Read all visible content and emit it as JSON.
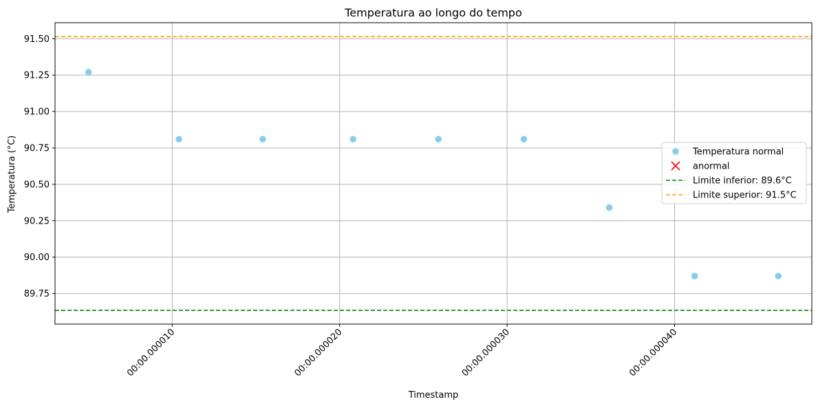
{
  "chart_data": {
    "type": "scatter",
    "title": "Temperatura ao longo do tempo",
    "xlabel": "Timestamp",
    "ylabel": "Temperatura (°C)",
    "x_unit": "microseconds",
    "xlim": [
      3,
      48.2
    ],
    "ylim": [
      89.54,
      91.61
    ],
    "x_ticks": [
      {
        "value": 10,
        "label": "00:00.000010"
      },
      {
        "value": 20,
        "label": "00:00.000020"
      },
      {
        "value": 30,
        "label": "00:00.000030"
      },
      {
        "value": 40,
        "label": "00:00.000040"
      }
    ],
    "y_ticks": [
      {
        "value": 89.75,
        "label": "89.75"
      },
      {
        "value": 90.0,
        "label": "90.00"
      },
      {
        "value": 90.25,
        "label": "90.25"
      },
      {
        "value": 90.5,
        "label": "90.50"
      },
      {
        "value": 90.75,
        "label": "90.75"
      },
      {
        "value": 91.0,
        "label": "91.00"
      },
      {
        "value": 91.25,
        "label": "91.25"
      },
      {
        "value": 91.5,
        "label": "91.50"
      }
    ],
    "grid": true,
    "legend_position": "center-right",
    "series": [
      {
        "name": "Temperatura normal",
        "kind": "scatter",
        "marker": "circle",
        "color": "#87ceeb",
        "x": [
          5.0,
          10.4,
          15.4,
          20.8,
          25.9,
          31.0,
          36.1,
          41.2,
          46.2
        ],
        "y": [
          91.27,
          90.81,
          90.81,
          90.81,
          90.81,
          90.81,
          90.34,
          89.87,
          89.87
        ]
      },
      {
        "name": "anormal",
        "kind": "scatter",
        "marker": "x",
        "color": "#ff0000",
        "x": [],
        "y": []
      }
    ],
    "reference_lines": [
      {
        "name": "Limite inferior: 89.6°C",
        "y": 89.635,
        "color": "#008000",
        "style": "dashed"
      },
      {
        "name": "Limite superior: 91.5°C",
        "y": 91.515,
        "color": "#ffa500",
        "style": "dashed"
      }
    ]
  }
}
